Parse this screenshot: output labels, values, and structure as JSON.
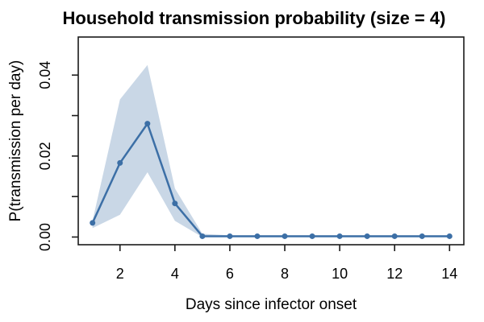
{
  "chart_data": {
    "type": "line",
    "title": "Household transmission probability (size = 4)",
    "xlabel": "Days since infector onset",
    "ylabel": "P(transmission per day)",
    "x": [
      1,
      2,
      3,
      4,
      5,
      6,
      7,
      8,
      9,
      10,
      11,
      12,
      13,
      14
    ],
    "series": [
      {
        "name": "transmission probability (mean)",
        "values": [
          0.0035,
          0.0183,
          0.028,
          0.0083,
          0.0002,
          0.0002,
          0.0002,
          0.0002,
          0.0002,
          0.0002,
          0.0002,
          0.0002,
          0.0002,
          0.0002
        ]
      },
      {
        "name": "confidence band upper",
        "values": [
          0.004,
          0.034,
          0.0425,
          0.012,
          0.0008,
          0.0004,
          0.0004,
          0.0004,
          0.0004,
          0.0004,
          0.0004,
          0.0004,
          0.0004,
          0.0004
        ]
      },
      {
        "name": "confidence band lower",
        "values": [
          0.0022,
          0.0055,
          0.016,
          0.004,
          0.0,
          0.0,
          0.0,
          0.0,
          0.0,
          0.0,
          0.0,
          0.0,
          0.0,
          0.0
        ]
      }
    ],
    "x_ticks": {
      "values": [
        2,
        4,
        6,
        8,
        10,
        12,
        14
      ],
      "labels": [
        "2",
        "4",
        "6",
        "8",
        "10",
        "12",
        "14"
      ]
    },
    "y_ticks": {
      "values": [
        0,
        0.01,
        0.02,
        0.03,
        0.04
      ],
      "labeled": [
        {
          "value": 0,
          "label": "0.00"
        },
        {
          "value": 0.02,
          "label": "0.02"
        },
        {
          "value": 0.04,
          "label": "0.04"
        }
      ]
    },
    "xlim": [
      0.48,
      14.52
    ],
    "ylim": [
      -0.0019,
      0.0494
    ],
    "grid": false,
    "legend": "none",
    "colors": {
      "line": "#3C6FA6",
      "point": "#3C6FA6",
      "band": "#C9D7E6",
      "box": "#1a1a1a",
      "text": "#000000",
      "background": "#FFFFFF"
    }
  }
}
